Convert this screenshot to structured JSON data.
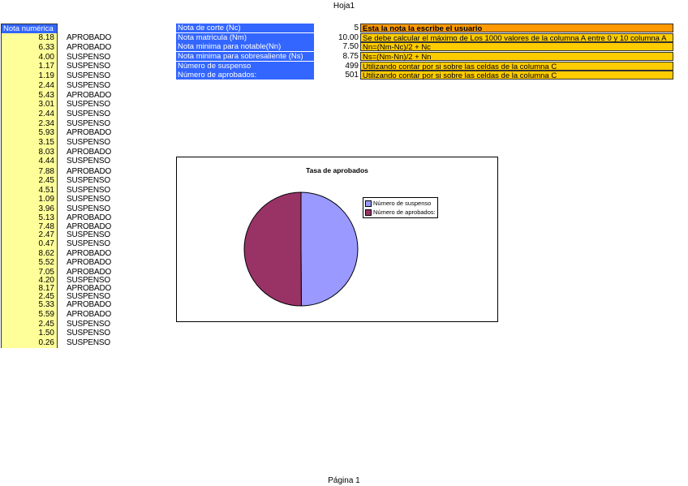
{
  "page_title": "Hoja1",
  "footer": "Página 1",
  "column": {
    "header": "Nota numérica",
    "values": [
      "8.18",
      "6.33",
      "4.00",
      "1.17",
      "1.19",
      "2.44",
      "5.43",
      "3.01",
      "2.44",
      "2.34",
      "5.93",
      "3.15",
      "8.03",
      "4.44",
      "7.88",
      "2.45",
      "4.51",
      "1.09",
      "3.96",
      "5.13",
      "7.48",
      "2.47",
      "0.47",
      "8.62",
      "5.52",
      "7.05",
      "4.20",
      "8.17",
      "2.45",
      "5.33",
      "5.59",
      "2.45",
      "1.50",
      "0.26"
    ],
    "results": [
      "APROBADO",
      "APROBADO",
      "SUSPENSO",
      "SUSPENSO",
      "SUSPENSO",
      "SUSPENSO",
      "APROBADO",
      "SUSPENSO",
      "SUSPENSO",
      "SUSPENSO",
      "APROBADO",
      "SUSPENSO",
      "APROBADO",
      "SUSPENSO",
      "APROBADO",
      "SUSPENSO",
      "SUSPENSO",
      "SUSPENSO",
      "SUSPENSO",
      "APROBADO",
      "APROBADO",
      "SUSPENSO",
      "SUSPENSO",
      "APROBADO",
      "APROBADO",
      "APROBADO",
      "SUSPENSO",
      "APROBADO",
      "SUSPENSO",
      "APROBADO",
      "APROBADO",
      "SUSPENSO",
      "SUSPENSO",
      "SUSPENSO"
    ]
  },
  "params": [
    {
      "label": "Nota de corte (Nc)",
      "value": "5",
      "note": "Esta la nota la escribe el usuario"
    },
    {
      "label": "Nota matricula (Nm)",
      "value": "10.00",
      "note": "Se debe calcular el máximo de Los 1000 valores de la columna A entre 0 y 10 columna A"
    },
    {
      "label": "Nota minima para notable(Nn)",
      "value": "7.50",
      "note": "Nn=(Nm-Nc)/2 + Nc"
    },
    {
      "label": "Nota minima para sobresaliente (Ns)",
      "value": "8.75",
      "note": "Ns=(Nm-Nn)/2 + Nn"
    },
    {
      "label": "Número de suspenso",
      "value": "499",
      "note": "Utilizando contar por si sobre las celdas de la columna C"
    },
    {
      "label": "Número de aprobados:",
      "value": "501",
      "note": "Utilizando contar por si sobre las celdas de la columna C"
    }
  ],
  "chart_data": {
    "type": "pie",
    "title": "Tasa de aprobados",
    "legend_position": "right",
    "slices": [
      {
        "name": "Número de suspenso",
        "value": 499,
        "color": "#9999ff"
      },
      {
        "name": "Número de aprobados:",
        "value": 501,
        "color": "#993366"
      }
    ]
  }
}
